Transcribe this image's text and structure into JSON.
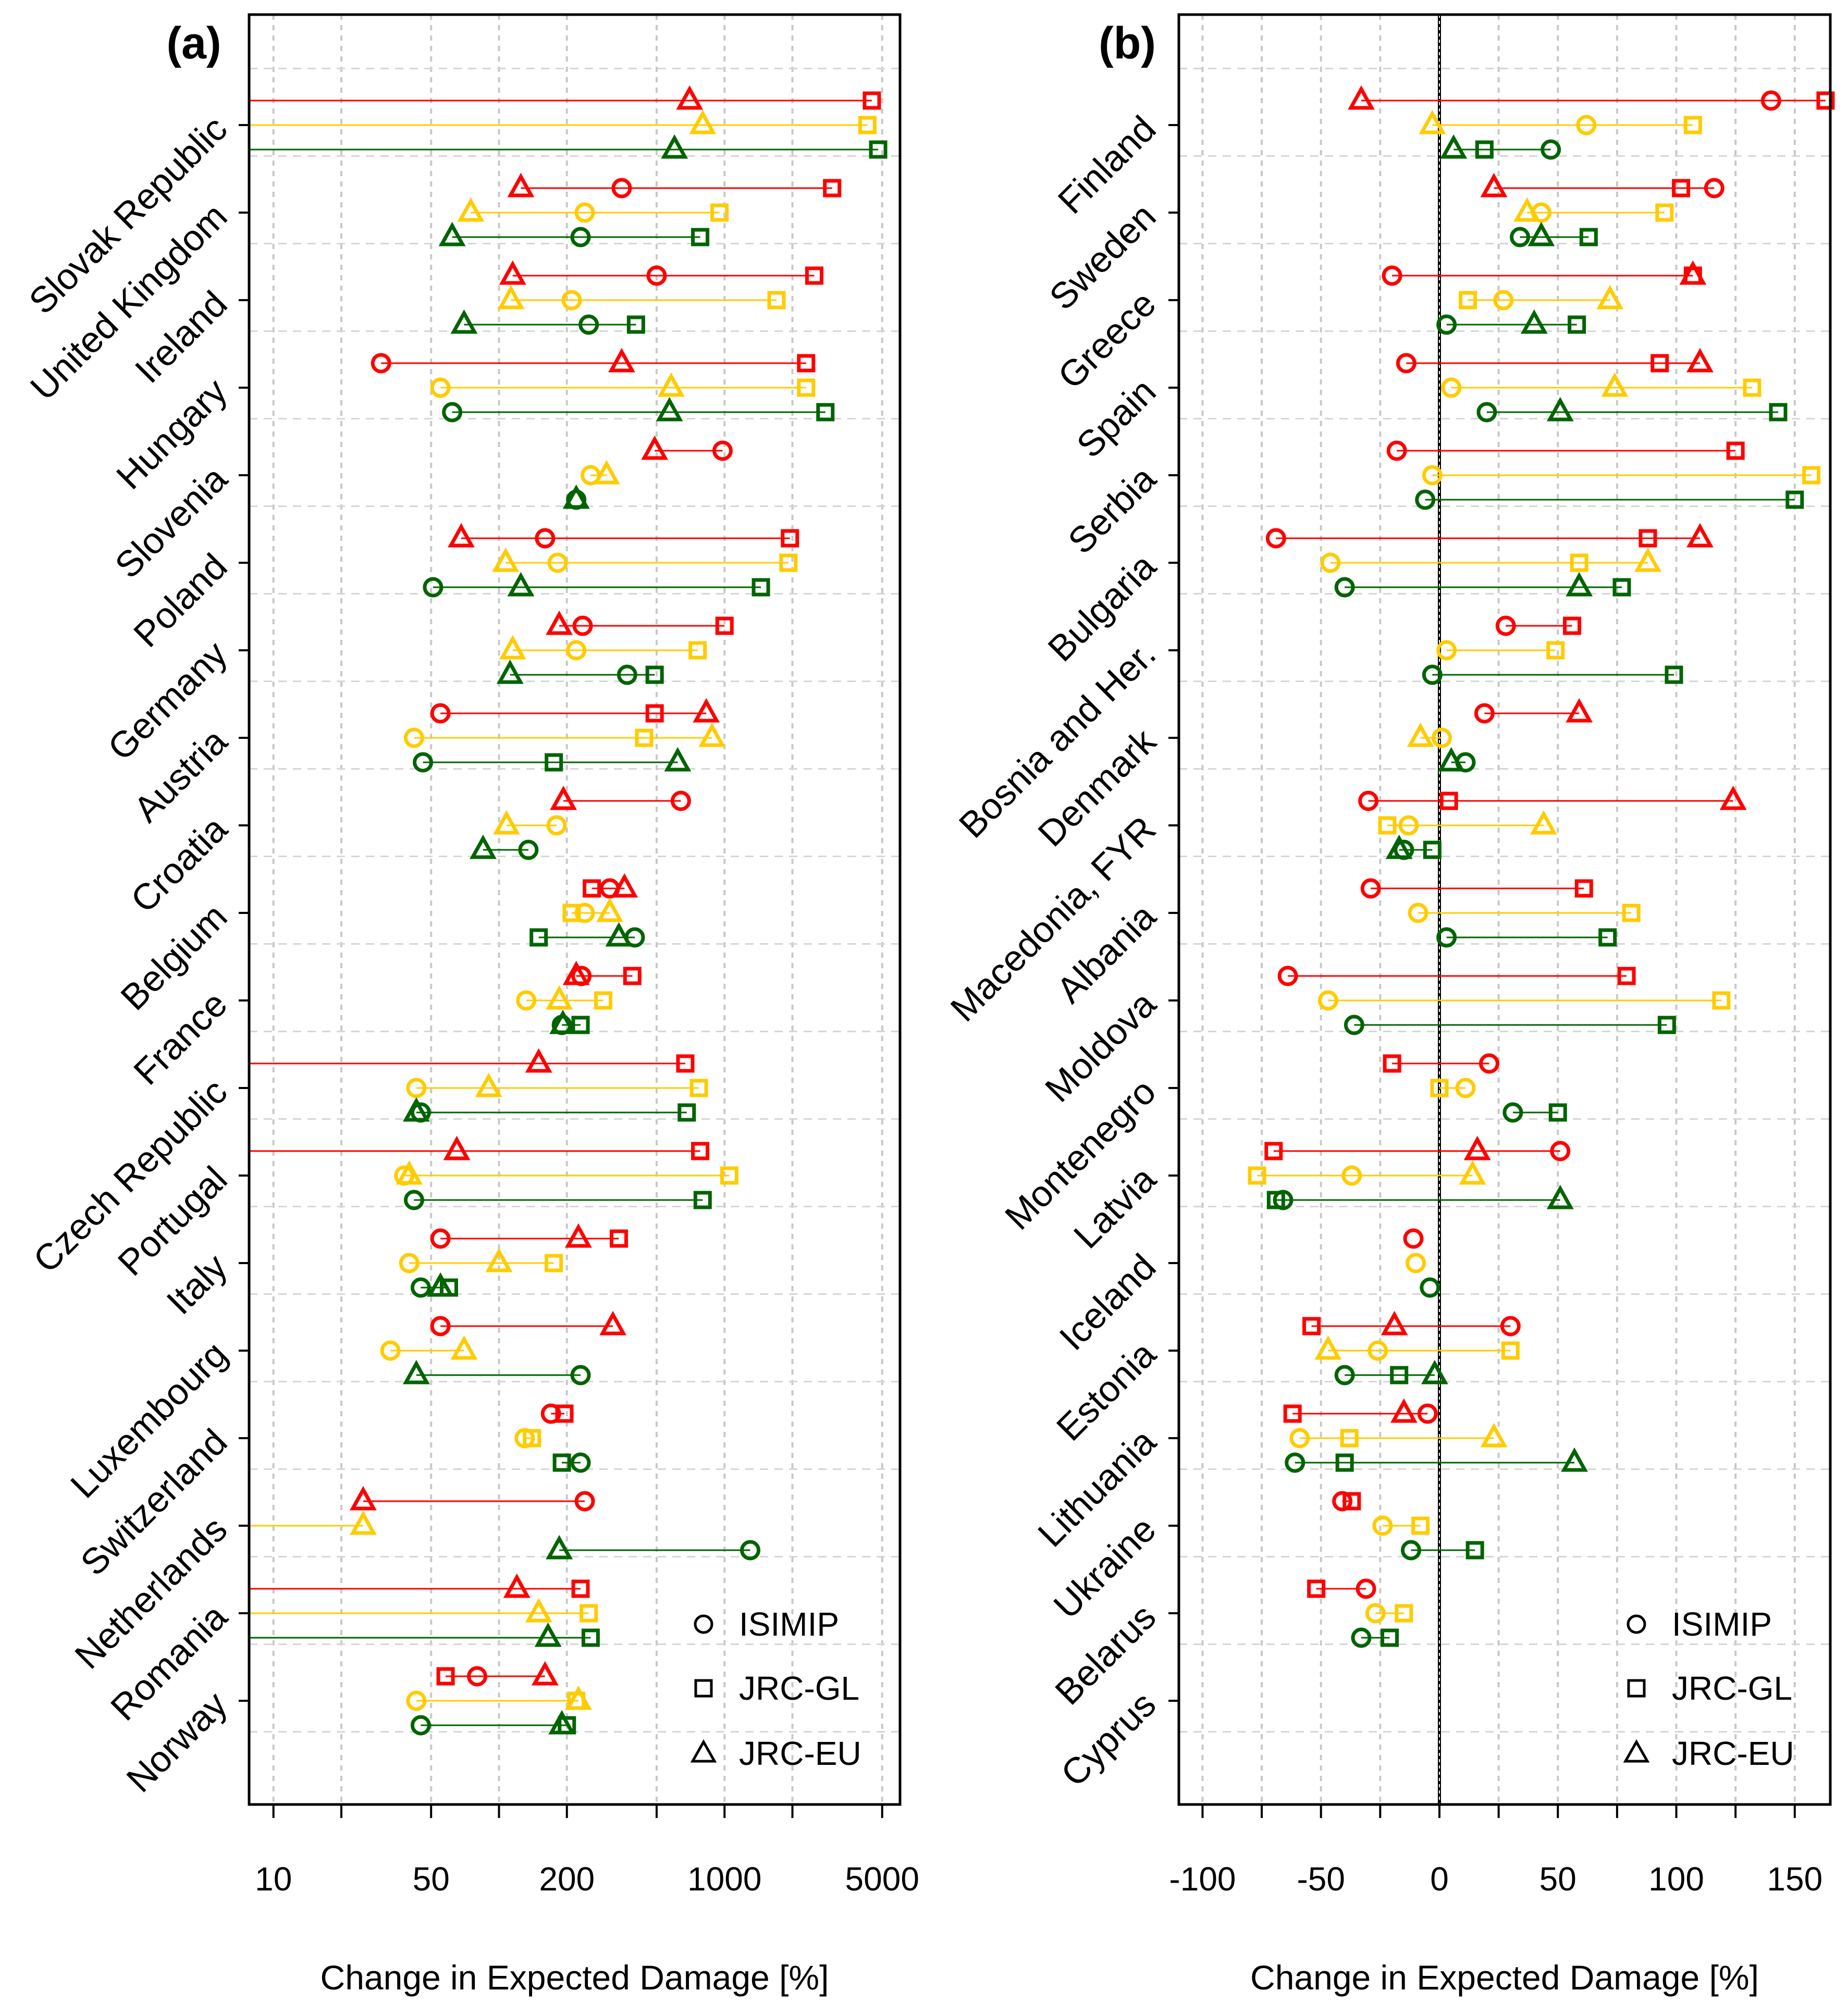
{
  "chart_data": [
    {
      "panel": "(a)",
      "type": "dot-range",
      "xlabel": "Change in Expected Damage [%]",
      "x_scale": "log",
      "xlim": [
        7.8,
        6000
      ],
      "x_ticks": [
        10,
        20,
        50,
        100,
        200,
        500,
        1000,
        2000,
        5000
      ],
      "x_tick_labels": [
        "10",
        "",
        "50",
        "",
        "200",
        "",
        "1000",
        "",
        "5000"
      ],
      "colors": {
        "ISIMIP_scenario_1": "#ff0000",
        "scenario_2": "#ffcc00",
        "scenario_3": "#006400"
      },
      "legend": [
        "ISIMIP",
        "JRC-GL",
        "JRC-EU"
      ],
      "countries": [
        {
          "name": "Slovak Republic",
          "rows": [
            {
              "circle": null,
              "square": 4500,
              "triangle": 700
            },
            {
              "circle": null,
              "square": 4300,
              "triangle": 800
            },
            {
              "circle": null,
              "square": 4800,
              "triangle": 600
            }
          ]
        },
        {
          "name": "United Kingdom",
          "rows": [
            {
              "circle": 350,
              "square": 3000,
              "triangle": 125
            },
            {
              "circle": 240,
              "square": 950,
              "triangle": 75
            },
            {
              "circle": 230,
              "square": 780,
              "triangle": 62
            }
          ]
        },
        {
          "name": "Ireland",
          "rows": [
            {
              "circle": 500,
              "square": 2500,
              "triangle": 115
            },
            {
              "circle": 210,
              "square": 1700,
              "triangle": 113
            },
            {
              "circle": 250,
              "square": 405,
              "triangle": 70
            }
          ]
        },
        {
          "name": "Hungary",
          "rows": [
            {
              "circle": 30,
              "square": 2300,
              "triangle": 350
            },
            {
              "circle": 55,
              "square": 2300,
              "triangle": 580
            },
            {
              "circle": 62,
              "square": 2800,
              "triangle": 570
            }
          ]
        },
        {
          "name": "Slovenia",
          "rows": [
            {
              "circle": 980,
              "square": null,
              "triangle": 490
            },
            {
              "circle": 255,
              "square": null,
              "triangle": 300
            },
            {
              "circle": 220,
              "square": null,
              "triangle": 220
            }
          ]
        },
        {
          "name": "Poland",
          "rows": [
            {
              "circle": 160,
              "square": 1950,
              "triangle": 68
            },
            {
              "circle": 182,
              "square": 1920,
              "triangle": 107
            },
            {
              "circle": 51,
              "square": 1450,
              "triangle": 125
            }
          ]
        },
        {
          "name": "Germany",
          "rows": [
            {
              "circle": 235,
              "square": 1000,
              "triangle": 185
            },
            {
              "circle": 220,
              "square": 760,
              "triangle": 115
            },
            {
              "circle": 370,
              "square": 490,
              "triangle": 112
            }
          ]
        },
        {
          "name": "Austria",
          "rows": [
            {
              "circle": 55,
              "square": 490,
              "triangle": 830
            },
            {
              "circle": 42,
              "square": 440,
              "triangle": 880
            },
            {
              "circle": 46,
              "square": 175,
              "triangle": 620
            }
          ]
        },
        {
          "name": "Croatia",
          "rows": [
            {
              "circle": 640,
              "square": null,
              "triangle": 193
            },
            {
              "circle": 180,
              "square": null,
              "triangle": 108
            },
            {
              "circle": 135,
              "square": null,
              "triangle": 85
            }
          ]
        },
        {
          "name": "Belgium",
          "rows": [
            {
              "circle": 310,
              "square": 258,
              "triangle": 360
            },
            {
              "circle": 240,
              "square": 210,
              "triangle": 310
            },
            {
              "circle": 400,
              "square": 150,
              "triangle": 340
            }
          ]
        },
        {
          "name": "France",
          "rows": [
            {
              "circle": 232,
              "square": 390,
              "triangle": 220
            },
            {
              "circle": 132,
              "square": 290,
              "triangle": 185
            },
            {
              "circle": 190,
              "square": 230,
              "triangle": 192
            }
          ]
        },
        {
          "name": "Czech Republic",
          "rows": [
            {
              "circle": null,
              "square": 670,
              "triangle": 150
            },
            {
              "circle": 43,
              "square": 770,
              "triangle": 90
            },
            {
              "circle": 45,
              "square": 680,
              "triangle": 43
            }
          ]
        },
        {
          "name": "Portugal",
          "rows": [
            {
              "circle": null,
              "square": 780,
              "triangle": 65
            },
            {
              "circle": 38,
              "square": 1050,
              "triangle": 40
            },
            {
              "circle": 42,
              "square": 800,
              "triangle": null
            }
          ]
        },
        {
          "name": "Italy",
          "rows": [
            {
              "circle": 55,
              "square": 340,
              "triangle": 225
            },
            {
              "circle": 40,
              "square": 175,
              "triangle": 100
            },
            {
              "circle": 45,
              "square": 60,
              "triangle": 55
            }
          ]
        },
        {
          "name": "Luxembourg",
          "rows": [
            {
              "circle": 55,
              "square": null,
              "triangle": 320
            },
            {
              "circle": 33,
              "square": null,
              "triangle": 70
            },
            {
              "circle": 230,
              "square": null,
              "triangle": 43
            }
          ]
        },
        {
          "name": "Switzerland",
          "rows": [
            {
              "circle": 170,
              "square": 195,
              "triangle": null
            },
            {
              "circle": 130,
              "square": 140,
              "triangle": null
            },
            {
              "circle": 230,
              "square": 190,
              "triangle": null
            }
          ]
        },
        {
          "name": "Netherlands",
          "rows": [
            {
              "circle": 240,
              "square": null,
              "triangle": 25
            },
            {
              "circle": null,
              "square": null,
              "triangle": 25
            },
            {
              "circle": 1300,
              "square": null,
              "triangle": 185
            }
          ]
        },
        {
          "name": "Romania",
          "rows": [
            {
              "circle": null,
              "square": 230,
              "triangle": 120
            },
            {
              "circle": null,
              "square": 250,
              "triangle": 150
            },
            {
              "circle": null,
              "square": 255,
              "triangle": 165
            }
          ]
        },
        {
          "name": "Norway",
          "rows": [
            {
              "circle": 80,
              "square": 58,
              "triangle": 160
            },
            {
              "circle": 43,
              "square": 220,
              "triangle": 225
            },
            {
              "circle": 45,
              "square": 200,
              "triangle": 190
            }
          ]
        }
      ]
    },
    {
      "panel": "(b)",
      "type": "dot-range",
      "xlabel": "Change in Expected Damage [%]",
      "x_scale": "linear",
      "xlim": [
        -110,
        165
      ],
      "x_ticks": [
        -100,
        -75,
        -50,
        -25,
        0,
        25,
        50,
        75,
        100,
        125,
        150
      ],
      "x_tick_labels": [
        "-100",
        "",
        "-50",
        "",
        "0",
        "",
        "50",
        "",
        "100",
        "",
        "150"
      ],
      "vertical_reference": 0,
      "legend": [
        "ISIMIP",
        "JRC-GL",
        "JRC-EU"
      ],
      "countries": [
        {
          "name": "Finland",
          "rows": [
            {
              "circle": 140,
              "square": 163,
              "triangle": -33
            },
            {
              "circle": 62,
              "square": 107,
              "triangle": -3
            },
            {
              "circle": 47,
              "square": 19,
              "triangle": 6
            }
          ]
        },
        {
          "name": "Sweden",
          "rows": [
            {
              "circle": 116,
              "square": 102,
              "triangle": 23
            },
            {
              "circle": 43,
              "square": 95,
              "triangle": 37
            },
            {
              "circle": 34,
              "square": 63,
              "triangle": 43
            }
          ]
        },
        {
          "name": "Greece",
          "rows": [
            {
              "circle": -20,
              "square": 107,
              "triangle": 107
            },
            {
              "circle": 27,
              "square": 12,
              "triangle": 72
            },
            {
              "circle": 3,
              "square": 58,
              "triangle": 40
            }
          ]
        },
        {
          "name": "Spain",
          "rows": [
            {
              "circle": -14,
              "square": 93,
              "triangle": 110
            },
            {
              "circle": 5,
              "square": 132,
              "triangle": 74
            },
            {
              "circle": 20,
              "square": 143,
              "triangle": 51
            }
          ]
        },
        {
          "name": "Serbia",
          "rows": [
            {
              "circle": -18,
              "square": 125,
              "triangle": null
            },
            {
              "circle": -3,
              "square": 157,
              "triangle": null
            },
            {
              "circle": -6,
              "square": 150,
              "triangle": null
            }
          ]
        },
        {
          "name": "Bulgaria",
          "rows": [
            {
              "circle": -69,
              "square": 88,
              "triangle": 110
            },
            {
              "circle": -46,
              "square": 59,
              "triangle": 88
            },
            {
              "circle": -40,
              "square": 77,
              "triangle": 59
            }
          ]
        },
        {
          "name": "Bosnia and Her.",
          "rows": [
            {
              "circle": 28,
              "square": 56,
              "triangle": null
            },
            {
              "circle": 3,
              "square": 49,
              "triangle": null
            },
            {
              "circle": -3,
              "square": 99,
              "triangle": null
            }
          ]
        },
        {
          "name": "Denmark",
          "rows": [
            {
              "circle": 19,
              "square": null,
              "triangle": 59
            },
            {
              "circle": 1,
              "square": null,
              "triangle": -8
            },
            {
              "circle": 11,
              "square": null,
              "triangle": 5
            }
          ]
        },
        {
          "name": "Macedonia, FYR",
          "rows": [
            {
              "circle": -30,
              "square": 4,
              "triangle": 124
            },
            {
              "circle": -13,
              "square": -22,
              "triangle": 44
            },
            {
              "circle": -15,
              "square": -3,
              "triangle": -17
            }
          ]
        },
        {
          "name": "Albania",
          "rows": [
            {
              "circle": -29,
              "square": 61,
              "triangle": null
            },
            {
              "circle": -9,
              "square": 81,
              "triangle": null
            },
            {
              "circle": 3,
              "square": 71,
              "triangle": null
            }
          ]
        },
        {
          "name": "Moldova",
          "rows": [
            {
              "circle": -64,
              "square": 79,
              "triangle": null
            },
            {
              "circle": -47,
              "square": 119,
              "triangle": null
            },
            {
              "circle": -36,
              "square": 96,
              "triangle": null
            }
          ]
        },
        {
          "name": "Montenegro",
          "rows": [
            {
              "circle": 21,
              "square": -20,
              "triangle": null
            },
            {
              "circle": 11,
              "square": 0,
              "triangle": null
            },
            {
              "circle": 31,
              "square": 50,
              "triangle": null
            }
          ]
        },
        {
          "name": "Latvia",
          "rows": [
            {
              "circle": 51,
              "square": -70,
              "triangle": 16
            },
            {
              "circle": -37,
              "square": -77,
              "triangle": 14
            },
            {
              "circle": -66,
              "square": -69,
              "triangle": 51
            }
          ]
        },
        {
          "name": "Iceland",
          "rows": [
            {
              "circle": -11,
              "square": null,
              "triangle": null
            },
            {
              "circle": -10,
              "square": null,
              "triangle": null
            },
            {
              "circle": -4,
              "square": null,
              "triangle": null
            }
          ]
        },
        {
          "name": "Estonia",
          "rows": [
            {
              "circle": 30,
              "square": -54,
              "triangle": -19
            },
            {
              "circle": -26,
              "square": 30,
              "triangle": -47
            },
            {
              "circle": -40,
              "square": -17,
              "triangle": -2
            }
          ]
        },
        {
          "name": "Lithuania",
          "rows": [
            {
              "circle": -5,
              "square": -62,
              "triangle": -15
            },
            {
              "circle": -59,
              "square": -38,
              "triangle": 23
            },
            {
              "circle": -61,
              "square": -40,
              "triangle": 57
            }
          ]
        },
        {
          "name": "Ukraine",
          "rows": [
            {
              "circle": -41,
              "square": -37,
              "triangle": null
            },
            {
              "circle": -24,
              "square": -8,
              "triangle": null
            },
            {
              "circle": -12,
              "square": 15,
              "triangle": null
            }
          ]
        },
        {
          "name": "Belarus",
          "rows": [
            {
              "circle": -31,
              "square": -52,
              "triangle": null
            },
            {
              "circle": -27,
              "square": -15,
              "triangle": null
            },
            {
              "circle": -33,
              "square": -21,
              "triangle": null
            }
          ]
        },
        {
          "name": "Cyprus",
          "rows": [
            {
              "circle": null,
              "square": null,
              "triangle": null
            },
            {
              "circle": null,
              "square": null,
              "triangle": null
            },
            {
              "circle": null,
              "square": null,
              "triangle": null
            }
          ]
        }
      ]
    }
  ]
}
